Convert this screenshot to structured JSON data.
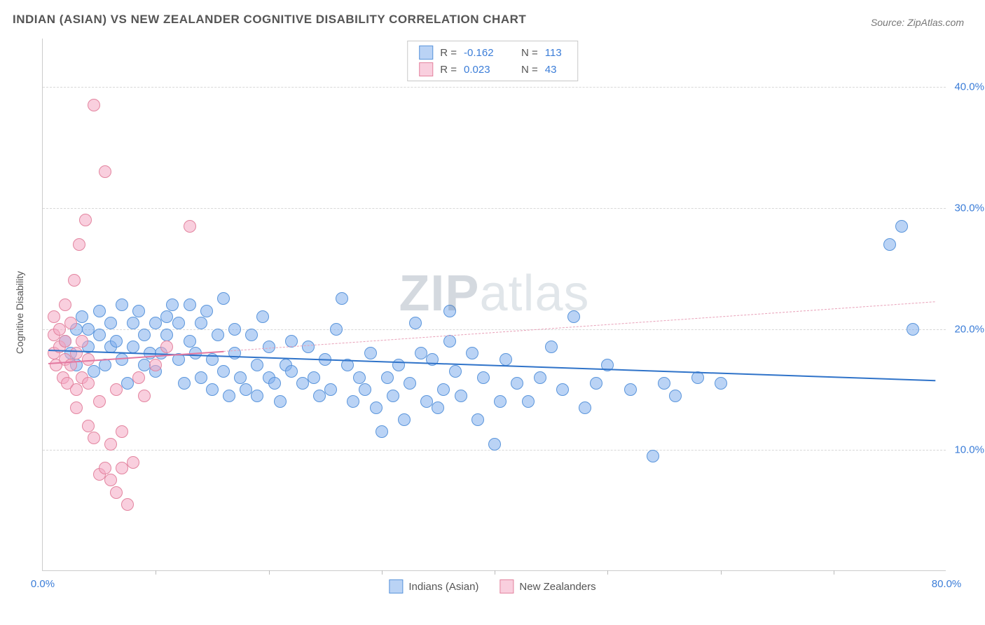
{
  "title": "INDIAN (ASIAN) VS NEW ZEALANDER COGNITIVE DISABILITY CORRELATION CHART",
  "source": "Source: ZipAtlas.com",
  "watermark_bold": "ZIP",
  "watermark_light": "atlas",
  "ylabel": "Cognitive Disability",
  "chart": {
    "type": "scatter",
    "xlim": [
      0,
      80
    ],
    "ylim": [
      0,
      44
    ],
    "x_ticks": [
      0,
      80
    ],
    "x_tick_labels": [
      "0.0%",
      "80.0%"
    ],
    "x_minor_ticks": [
      10,
      20,
      30,
      40,
      50,
      60,
      70
    ],
    "y_gridlines": [
      10,
      20,
      30,
      40
    ],
    "y_tick_labels": [
      "10.0%",
      "20.0%",
      "30.0%",
      "40.0%"
    ],
    "background_color": "#ffffff",
    "grid_color": "#d8d8d8",
    "point_radius": 9,
    "point_stroke_width": 1.2,
    "series": [
      {
        "name": "Indians (Asian)",
        "fill": "rgba(129,175,236,0.55)",
        "stroke": "#5a95db",
        "r": -0.162,
        "n": 113,
        "trend": {
          "x1": 0.5,
          "y1": 18.3,
          "x2": 79,
          "y2": 15.8,
          "color": "#2f73c9",
          "width": 2,
          "dashed": false
        },
        "points": [
          [
            2,
            19
          ],
          [
            2.5,
            18
          ],
          [
            3,
            20
          ],
          [
            3,
            17
          ],
          [
            3.5,
            21
          ],
          [
            4,
            18.5
          ],
          [
            4,
            20
          ],
          [
            4.5,
            16.5
          ],
          [
            5,
            19.5
          ],
          [
            5,
            21.5
          ],
          [
            5.5,
            17
          ],
          [
            6,
            18.5
          ],
          [
            6,
            20.5
          ],
          [
            6.5,
            19
          ],
          [
            7,
            22
          ],
          [
            7,
            17.5
          ],
          [
            7.5,
            15.5
          ],
          [
            8,
            18.5
          ],
          [
            8,
            20.5
          ],
          [
            8.5,
            21.5
          ],
          [
            9,
            17
          ],
          [
            9,
            19.5
          ],
          [
            9.5,
            18
          ],
          [
            10,
            16.5
          ],
          [
            10,
            20.5
          ],
          [
            10.5,
            18
          ],
          [
            11,
            19.5
          ],
          [
            11,
            21
          ],
          [
            11.5,
            22
          ],
          [
            12,
            17.5
          ],
          [
            12,
            20.5
          ],
          [
            12.5,
            15.5
          ],
          [
            13,
            19
          ],
          [
            13,
            22
          ],
          [
            13.5,
            18
          ],
          [
            14,
            16
          ],
          [
            14,
            20.5
          ],
          [
            14.5,
            21.5
          ],
          [
            15,
            17.5
          ],
          [
            15,
            15
          ],
          [
            15.5,
            19.5
          ],
          [
            16,
            22.5
          ],
          [
            16,
            16.5
          ],
          [
            16.5,
            14.5
          ],
          [
            17,
            18
          ],
          [
            17,
            20
          ],
          [
            17.5,
            16
          ],
          [
            18,
            15
          ],
          [
            18.5,
            19.5
          ],
          [
            19,
            17
          ],
          [
            19,
            14.5
          ],
          [
            19.5,
            21
          ],
          [
            20,
            16
          ],
          [
            20,
            18.5
          ],
          [
            20.5,
            15.5
          ],
          [
            21,
            14
          ],
          [
            21.5,
            17
          ],
          [
            22,
            16.5
          ],
          [
            22,
            19
          ],
          [
            23,
            15.5
          ],
          [
            23.5,
            18.5
          ],
          [
            24,
            16
          ],
          [
            24.5,
            14.5
          ],
          [
            25,
            17.5
          ],
          [
            25.5,
            15
          ],
          [
            26,
            20
          ],
          [
            26.5,
            22.5
          ],
          [
            27,
            17
          ],
          [
            27.5,
            14
          ],
          [
            28,
            16
          ],
          [
            28.5,
            15
          ],
          [
            29,
            18
          ],
          [
            29.5,
            13.5
          ],
          [
            30,
            11.5
          ],
          [
            30.5,
            16
          ],
          [
            31,
            14.5
          ],
          [
            31.5,
            17
          ],
          [
            32,
            12.5
          ],
          [
            32.5,
            15.5
          ],
          [
            33,
            20.5
          ],
          [
            33.5,
            18
          ],
          [
            34,
            14
          ],
          [
            34.5,
            17.5
          ],
          [
            35,
            13.5
          ],
          [
            35.5,
            15
          ],
          [
            36,
            19
          ],
          [
            36.5,
            16.5
          ],
          [
            37,
            14.5
          ],
          [
            38,
            18
          ],
          [
            38.5,
            12.5
          ],
          [
            39,
            16
          ],
          [
            40,
            10.5
          ],
          [
            40.5,
            14
          ],
          [
            41,
            17.5
          ],
          [
            42,
            15.5
          ],
          [
            43,
            14
          ],
          [
            44,
            16
          ],
          [
            45,
            18.5
          ],
          [
            46,
            15
          ],
          [
            47,
            21
          ],
          [
            48,
            13.5
          ],
          [
            49,
            15.5
          ],
          [
            50,
            17
          ],
          [
            52,
            15
          ],
          [
            54,
            9.5
          ],
          [
            55,
            15.5
          ],
          [
            56,
            14.5
          ],
          [
            58,
            16
          ],
          [
            60,
            15.5
          ],
          [
            75,
            27
          ],
          [
            76,
            28.5
          ],
          [
            77,
            20
          ],
          [
            36,
            21.5
          ]
        ]
      },
      {
        "name": "New Zealanders",
        "fill": "rgba(244,168,195,0.55)",
        "stroke": "#e3849f",
        "r": 0.023,
        "n": 43,
        "trend_solid": {
          "x1": 0.5,
          "y1": 17.2,
          "x2": 16,
          "y2": 18.2,
          "color": "#e378a0",
          "width": 2,
          "dashed": false
        },
        "trend_dash": {
          "x1": 16,
          "y1": 18.2,
          "x2": 79,
          "y2": 22.3,
          "color": "#e8a0b8",
          "width": 1.5,
          "dashed": true
        },
        "points": [
          [
            1,
            18
          ],
          [
            1,
            19.5
          ],
          [
            1,
            21
          ],
          [
            1.2,
            17
          ],
          [
            1.5,
            18.5
          ],
          [
            1.5,
            20
          ],
          [
            1.8,
            16
          ],
          [
            2,
            17.5
          ],
          [
            2,
            19
          ],
          [
            2,
            22
          ],
          [
            2.2,
            15.5
          ],
          [
            2.5,
            17
          ],
          [
            2.5,
            20.5
          ],
          [
            2.8,
            24
          ],
          [
            3,
            18
          ],
          [
            3,
            15
          ],
          [
            3,
            13.5
          ],
          [
            3.2,
            27
          ],
          [
            3.5,
            16
          ],
          [
            3.5,
            19
          ],
          [
            3.8,
            29
          ],
          [
            4,
            12
          ],
          [
            4,
            15.5
          ],
          [
            4,
            17.5
          ],
          [
            4.5,
            38.5
          ],
          [
            4.5,
            11
          ],
          [
            5,
            8
          ],
          [
            5,
            14
          ],
          [
            5.5,
            8.5
          ],
          [
            5.5,
            33
          ],
          [
            6,
            7.5
          ],
          [
            6,
            10.5
          ],
          [
            6.5,
            6.5
          ],
          [
            6.5,
            15
          ],
          [
            7,
            8.5
          ],
          [
            7,
            11.5
          ],
          [
            7.5,
            5.5
          ],
          [
            8,
            9
          ],
          [
            8.5,
            16
          ],
          [
            9,
            14.5
          ],
          [
            10,
            17
          ],
          [
            11,
            18.5
          ],
          [
            13,
            28.5
          ]
        ]
      }
    ]
  },
  "legend_top": [
    {
      "swatch_fill": "rgba(129,175,236,0.55)",
      "swatch_stroke": "#5a95db",
      "r": "-0.162",
      "n": "113"
    },
    {
      "swatch_fill": "rgba(244,168,195,0.55)",
      "swatch_stroke": "#e3849f",
      "r": "0.023",
      "n": "43"
    }
  ],
  "legend_bottom": [
    {
      "swatch_fill": "rgba(129,175,236,0.55)",
      "swatch_stroke": "#5a95db",
      "label": "Indians (Asian)"
    },
    {
      "swatch_fill": "rgba(244,168,195,0.55)",
      "swatch_stroke": "#e3849f",
      "label": "New Zealanders"
    }
  ]
}
